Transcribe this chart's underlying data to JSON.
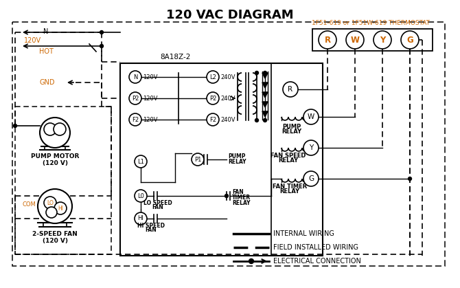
{
  "title": "120 VAC DIAGRAM",
  "bg_color": "#ffffff",
  "line_color": "#000000",
  "orange_color": "#cc6600",
  "thermostat_label": "1F51-619 or 1F51W-619 THERMOSTAT",
  "box_label": "8A18Z-2",
  "pump_motor_label": "PUMP MOTOR\n(120 V)",
  "fan_label": "2-SPEED FAN\n(120 V)",
  "legend_internal": "INTERNAL WIRING",
  "legend_field": "FIELD INSTALLED WIRING",
  "legend_electrical": "ELECTRICAL CONNECTION"
}
